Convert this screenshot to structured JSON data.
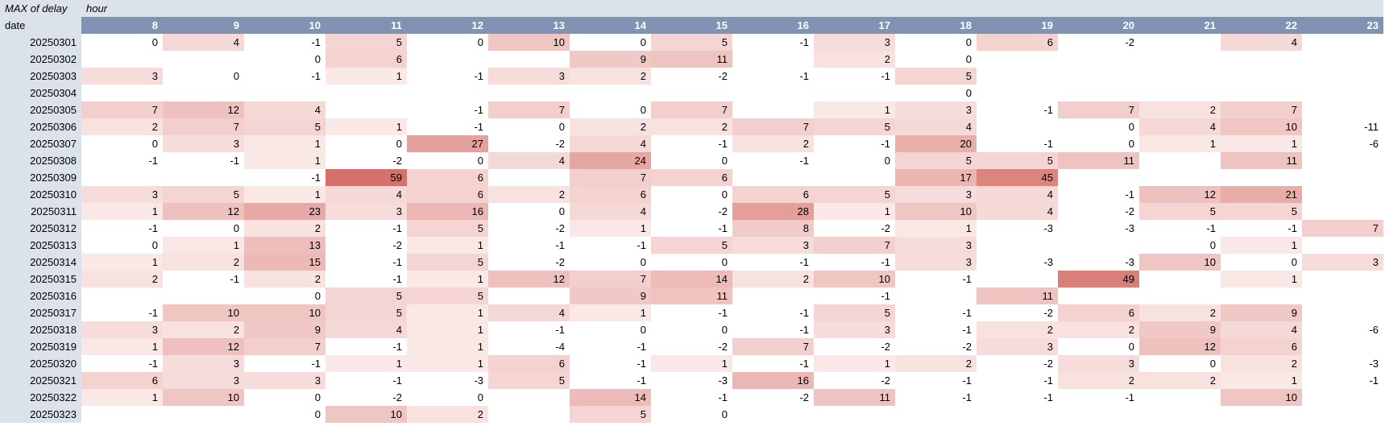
{
  "pivot": {
    "title": "MAX of delay",
    "column_field": "hour",
    "row_field": "date",
    "hours": [
      "8",
      "9",
      "10",
      "11",
      "12",
      "13",
      "14",
      "15",
      "16",
      "17",
      "18",
      "19",
      "20",
      "21",
      "22",
      "23"
    ],
    "rows": [
      {
        "date": "20250301",
        "values": [
          0,
          4,
          -1,
          5,
          0,
          10,
          0,
          5,
          -1,
          3,
          0,
          6,
          -2,
          null,
          4,
          null
        ]
      },
      {
        "date": "20250302",
        "values": [
          null,
          null,
          0,
          6,
          null,
          null,
          9,
          11,
          null,
          2,
          0,
          null,
          null,
          null,
          null,
          null
        ]
      },
      {
        "date": "20250303",
        "values": [
          3,
          0,
          -1,
          1,
          -1,
          3,
          2,
          -2,
          -1,
          -1,
          5,
          null,
          null,
          null,
          null,
          null
        ]
      },
      {
        "date": "20250304",
        "values": [
          null,
          null,
          null,
          null,
          null,
          null,
          null,
          null,
          null,
          null,
          0,
          null,
          null,
          null,
          null,
          null
        ]
      },
      {
        "date": "20250305",
        "values": [
          7,
          12,
          4,
          null,
          -1,
          7,
          0,
          7,
          null,
          1,
          3,
          -1,
          7,
          2,
          7,
          null
        ]
      },
      {
        "date": "20250306",
        "values": [
          2,
          7,
          5,
          1,
          -1,
          0,
          2,
          2,
          7,
          5,
          4,
          null,
          0,
          4,
          10,
          -11
        ]
      },
      {
        "date": "20250307",
        "values": [
          0,
          3,
          1,
          0,
          27,
          -2,
          4,
          -1,
          2,
          -1,
          20,
          -1,
          0,
          1,
          1,
          -6
        ]
      },
      {
        "date": "20250308",
        "values": [
          -1,
          -1,
          1,
          -2,
          0,
          4,
          24,
          0,
          -1,
          0,
          5,
          5,
          11,
          null,
          11,
          null
        ]
      },
      {
        "date": "20250309",
        "values": [
          null,
          null,
          -1,
          59,
          6,
          null,
          7,
          6,
          null,
          null,
          17,
          45,
          null,
          null,
          null,
          null
        ]
      },
      {
        "date": "20250310",
        "values": [
          3,
          5,
          1,
          4,
          6,
          2,
          6,
          0,
          6,
          5,
          3,
          4,
          -1,
          12,
          21,
          null
        ]
      },
      {
        "date": "20250311",
        "values": [
          1,
          12,
          23,
          3,
          16,
          0,
          4,
          -2,
          28,
          1,
          10,
          4,
          -2,
          5,
          5,
          null
        ]
      },
      {
        "date": "20250312",
        "values": [
          -1,
          0,
          2,
          -1,
          5,
          -2,
          1,
          -1,
          8,
          -2,
          1,
          -3,
          -3,
          -1,
          -1,
          7
        ]
      },
      {
        "date": "20250313",
        "values": [
          0,
          1,
          13,
          -2,
          1,
          -1,
          -1,
          5,
          3,
          7,
          3,
          null,
          null,
          0,
          1,
          null
        ]
      },
      {
        "date": "20250314",
        "values": [
          1,
          2,
          15,
          -1,
          5,
          -2,
          0,
          0,
          -1,
          -1,
          3,
          -3,
          -3,
          10,
          0,
          3
        ]
      },
      {
        "date": "20250315",
        "values": [
          2,
          -1,
          2,
          -1,
          1,
          12,
          7,
          14,
          2,
          10,
          -1,
          null,
          49,
          null,
          1,
          null
        ]
      },
      {
        "date": "20250316",
        "values": [
          null,
          null,
          0,
          5,
          5,
          null,
          9,
          11,
          null,
          -1,
          null,
          11,
          null,
          null,
          null,
          null
        ]
      },
      {
        "date": "20250317",
        "values": [
          -1,
          10,
          10,
          5,
          1,
          4,
          1,
          -1,
          -1,
          5,
          -1,
          -2,
          6,
          2,
          9,
          null
        ]
      },
      {
        "date": "20250318",
        "values": [
          3,
          2,
          9,
          4,
          1,
          -1,
          0,
          0,
          -1,
          3,
          -1,
          2,
          2,
          9,
          4,
          -6
        ]
      },
      {
        "date": "20250319",
        "values": [
          1,
          12,
          7,
          -1,
          1,
          -4,
          -1,
          -2,
          7,
          -2,
          -2,
          3,
          0,
          12,
          6,
          null
        ]
      },
      {
        "date": "20250320",
        "values": [
          -1,
          3,
          -1,
          1,
          1,
          6,
          -1,
          1,
          -1,
          1,
          2,
          -2,
          3,
          0,
          2,
          -3
        ]
      },
      {
        "date": "20250321",
        "values": [
          6,
          3,
          3,
          -1,
          -3,
          5,
          -1,
          -3,
          16,
          -2,
          -1,
          -1,
          2,
          2,
          1,
          -1
        ]
      },
      {
        "date": "20250322",
        "values": [
          1,
          10,
          0,
          -2,
          0,
          null,
          14,
          -1,
          -2,
          11,
          -1,
          -1,
          -1,
          null,
          10,
          null
        ]
      },
      {
        "date": "20250323",
        "values": [
          null,
          null,
          0,
          10,
          2,
          null,
          5,
          0,
          null,
          null,
          null,
          null,
          null,
          null,
          null,
          null
        ]
      }
    ]
  },
  "colors": {
    "header_fill": "#8093b3",
    "label_fill": "#dce2ec",
    "heat_high": "#d6706a",
    "heat_low": "#fdf3f2"
  }
}
